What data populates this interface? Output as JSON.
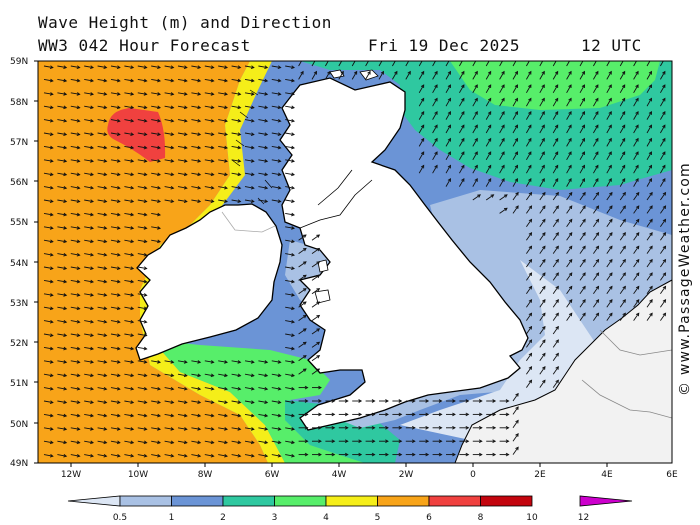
{
  "header": {
    "title": "Wave Height (m) and Direction",
    "subtitle": "WW3 042 Hour Forecast",
    "date": "Fri 19 Dec 2025",
    "time": "12 UTC"
  },
  "credit": "© www.PassageWeather.com",
  "map": {
    "lat_labels": [
      "59N",
      "58N",
      "57N",
      "56N",
      "55N",
      "54N",
      "53N",
      "52N",
      "51N",
      "50N",
      "49N"
    ],
    "lon_labels": [
      "12W",
      "10W",
      "8W",
      "6W",
      "4W",
      "2W",
      "0",
      "2E",
      "4E",
      "6E"
    ],
    "grid": false
  },
  "legend": {
    "ticks": [
      "0.5",
      "1",
      "2",
      "3",
      "4",
      "5",
      "6",
      "8",
      "10",
      "12"
    ],
    "colors": [
      "#dce6f4",
      "#a9c1e4",
      "#6b94d6",
      "#2fc8a0",
      "#57ee6a",
      "#f5ee19",
      "#f8a419",
      "#f0413f",
      "#c3050e",
      "#cc00cc"
    ]
  },
  "palette": {
    "land": "#ffffff",
    "continent": "#f2f2f2",
    "coast": "#000000",
    "arrow": "#111111"
  }
}
